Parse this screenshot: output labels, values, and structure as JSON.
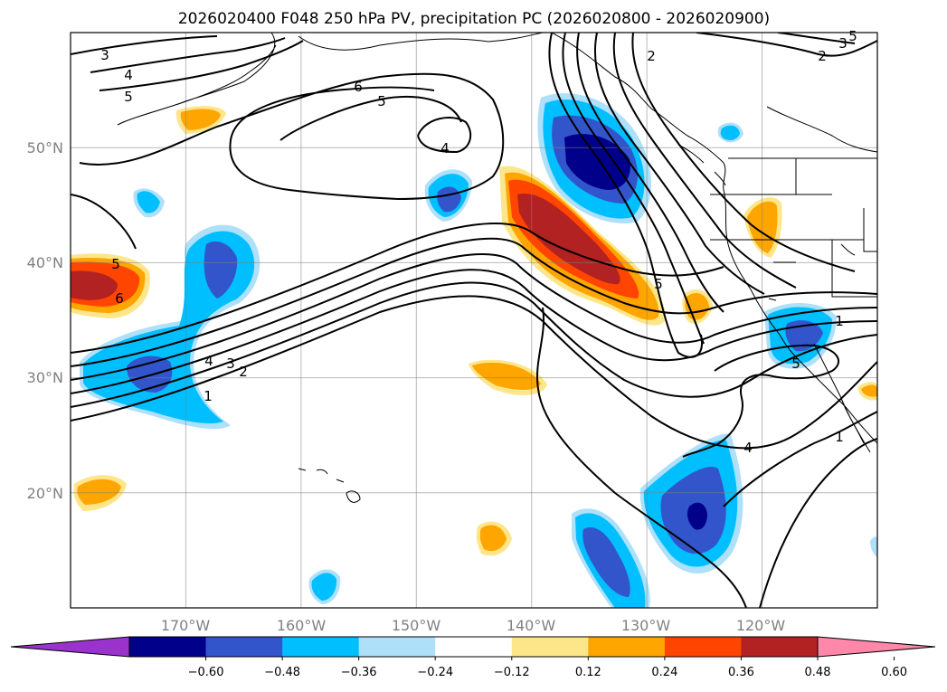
{
  "chart_data": {
    "type": "map",
    "title": "2026020400 F048 250 hPa PV, precipitation PC (2026020800 - 2026020900)",
    "lat_labels": [
      "50°N",
      "40°N",
      "30°N",
      "20°N"
    ],
    "lon_labels": [
      "170°W",
      "160°W",
      "150°W",
      "140°W",
      "130°W",
      "120°W"
    ],
    "lon_range": [
      -180,
      -110
    ],
    "lat_range": [
      10,
      60
    ],
    "grid": true,
    "pv_contour_levels": [
      1,
      2,
      3,
      4,
      5,
      6
    ],
    "pv_contour_labels": [
      "3",
      "4",
      "5",
      "6",
      "5",
      "4",
      "2",
      "2",
      "3",
      "5",
      "6",
      "5",
      "4",
      "3",
      "2",
      "1",
      "5",
      "1",
      "5",
      "4",
      "1"
    ],
    "colorbar": {
      "tick_labels": [
        "−0.60",
        "−0.48",
        "−0.36",
        "−0.24",
        "−0.12",
        "0.12",
        "0.24",
        "0.36",
        "0.48",
        "0.60"
      ],
      "colors": [
        "#9933cc",
        "#00008b",
        "#3355cc",
        "#00bfff",
        "#aee0fa",
        "#ffffff",
        "#fde68a",
        "#ffa500",
        "#ff4500",
        "#b22222",
        "#ff88aa"
      ]
    }
  }
}
